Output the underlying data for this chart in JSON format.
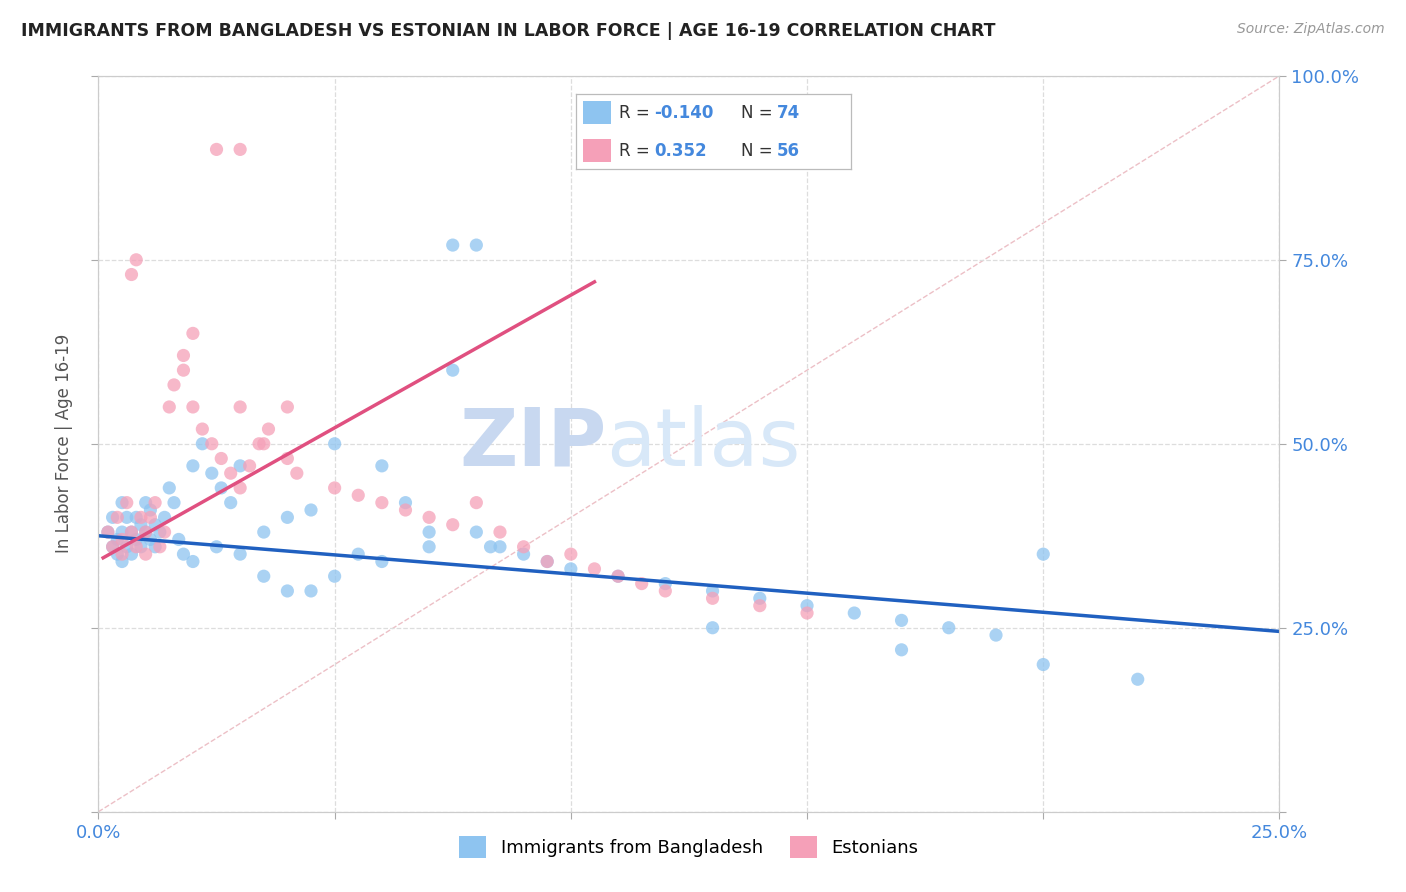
{
  "title": "IMMIGRANTS FROM BANGLADESH VS ESTONIAN IN LABOR FORCE | AGE 16-19 CORRELATION CHART",
  "source": "Source: ZipAtlas.com",
  "ylabel": "In Labor Force | Age 16-19",
  "color_bangladesh": "#8ec4f0",
  "color_estonian": "#f5a0b8",
  "color_blue_line": "#2060c0",
  "color_pink_line": "#e05080",
  "color_diag": "#e8b0b8",
  "watermark_zip": "ZIP",
  "watermark_atlas": "atlas",
  "xlim": [
    0.0,
    0.25
  ],
  "ylim": [
    0.0,
    1.0
  ],
  "blue_line_x": [
    0.0,
    0.25
  ],
  "blue_line_y": [
    0.375,
    0.245
  ],
  "pink_line_x": [
    0.001,
    0.105
  ],
  "pink_line_y": [
    0.345,
    0.72
  ],
  "bang_x": [
    0.002,
    0.003,
    0.003,
    0.004,
    0.004,
    0.005,
    0.005,
    0.005,
    0.006,
    0.006,
    0.007,
    0.007,
    0.008,
    0.008,
    0.009,
    0.009,
    0.01,
    0.01,
    0.011,
    0.011,
    0.012,
    0.012,
    0.013,
    0.014,
    0.015,
    0.016,
    0.017,
    0.018,
    0.02,
    0.022,
    0.024,
    0.026,
    0.028,
    0.03,
    0.035,
    0.04,
    0.045,
    0.05,
    0.055,
    0.06,
    0.065,
    0.07,
    0.075,
    0.08,
    0.085,
    0.09,
    0.095,
    0.1,
    0.11,
    0.12,
    0.13,
    0.14,
    0.15,
    0.16,
    0.17,
    0.18,
    0.19,
    0.2,
    0.075,
    0.083,
    0.02,
    0.025,
    0.03,
    0.035,
    0.04,
    0.045,
    0.05,
    0.06,
    0.07,
    0.08,
    0.13,
    0.17,
    0.2,
    0.22
  ],
  "bang_y": [
    0.38,
    0.36,
    0.4,
    0.37,
    0.35,
    0.42,
    0.38,
    0.34,
    0.4,
    0.36,
    0.38,
    0.35,
    0.4,
    0.37,
    0.36,
    0.39,
    0.38,
    0.42,
    0.37,
    0.41,
    0.39,
    0.36,
    0.38,
    0.4,
    0.44,
    0.42,
    0.37,
    0.35,
    0.47,
    0.5,
    0.46,
    0.44,
    0.42,
    0.47,
    0.38,
    0.4,
    0.41,
    0.5,
    0.35,
    0.47,
    0.42,
    0.38,
    0.77,
    0.77,
    0.36,
    0.35,
    0.34,
    0.33,
    0.32,
    0.31,
    0.3,
    0.29,
    0.28,
    0.27,
    0.26,
    0.25,
    0.24,
    0.35,
    0.6,
    0.36,
    0.34,
    0.36,
    0.35,
    0.32,
    0.3,
    0.3,
    0.32,
    0.34,
    0.36,
    0.38,
    0.25,
    0.22,
    0.2,
    0.18
  ],
  "est_x": [
    0.002,
    0.003,
    0.004,
    0.005,
    0.005,
    0.006,
    0.007,
    0.008,
    0.009,
    0.01,
    0.01,
    0.011,
    0.012,
    0.013,
    0.014,
    0.015,
    0.016,
    0.018,
    0.02,
    0.022,
    0.024,
    0.026,
    0.028,
    0.03,
    0.032,
    0.034,
    0.036,
    0.04,
    0.025,
    0.03,
    0.007,
    0.008,
    0.018,
    0.02,
    0.03,
    0.035,
    0.04,
    0.042,
    0.05,
    0.055,
    0.06,
    0.065,
    0.07,
    0.075,
    0.08,
    0.085,
    0.09,
    0.095,
    0.1,
    0.105,
    0.11,
    0.115,
    0.12,
    0.13,
    0.14,
    0.15
  ],
  "est_y": [
    0.38,
    0.36,
    0.4,
    0.37,
    0.35,
    0.42,
    0.38,
    0.36,
    0.4,
    0.38,
    0.35,
    0.4,
    0.42,
    0.36,
    0.38,
    0.55,
    0.58,
    0.6,
    0.55,
    0.52,
    0.5,
    0.48,
    0.46,
    0.44,
    0.47,
    0.5,
    0.52,
    0.55,
    0.9,
    0.9,
    0.73,
    0.75,
    0.62,
    0.65,
    0.55,
    0.5,
    0.48,
    0.46,
    0.44,
    0.43,
    0.42,
    0.41,
    0.4,
    0.39,
    0.42,
    0.38,
    0.36,
    0.34,
    0.35,
    0.33,
    0.32,
    0.31,
    0.3,
    0.29,
    0.28,
    0.27
  ]
}
